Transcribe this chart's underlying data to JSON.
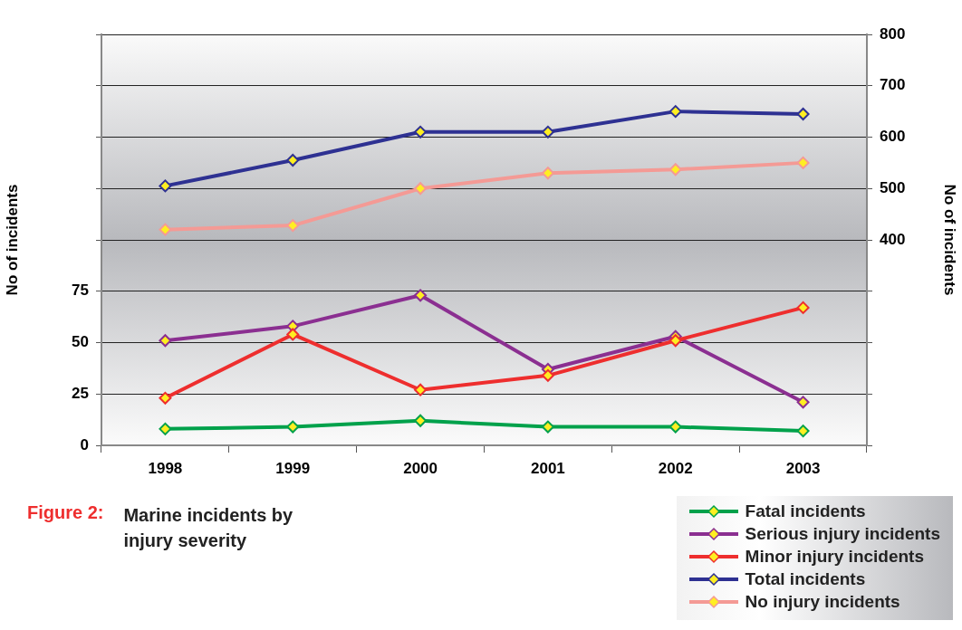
{
  "chart_data": {
    "type": "line",
    "title": "Marine incidents by injury severity",
    "annotations": [
      "Figure 2:"
    ],
    "ylabel": "No of incidents",
    "y2label": "No of incidents",
    "categories": [
      "1998",
      "1999",
      "2000",
      "2001",
      "2002",
      "2003"
    ],
    "series": [
      {
        "name": "Fatal incidents",
        "color": "#00a14b",
        "values": [
          8,
          9,
          12,
          9,
          9,
          7
        ]
      },
      {
        "name": "Serious injury incidents",
        "color": "#8b2f91",
        "values": [
          51,
          58,
          73,
          37,
          53,
          21
        ]
      },
      {
        "name": "Minor injury incidents",
        "color": "#ee2e2e",
        "values": [
          23,
          54,
          27,
          34,
          51,
          67
        ]
      },
      {
        "name": "Total incidents",
        "color": "#2e3192",
        "values": [
          505,
          555,
          610,
          610,
          650,
          645
        ],
        "axis": "y2"
      },
      {
        "name": "No injury incidents",
        "color": "#f49a95",
        "values": [
          420,
          428,
          500,
          530,
          537,
          550
        ],
        "axis": "y2"
      }
    ],
    "ylim": [
      0,
      200
    ],
    "yticks": [
      0,
      25,
      50,
      75,
      {
        "value": 100,
        "label": null
      },
      {
        "value": 125,
        "label": null
      },
      {
        "value": 150,
        "label": null
      },
      {
        "value": 175,
        "label": null
      },
      {
        "value": 200,
        "label": null
      }
    ],
    "y2lim": [
      0,
      800
    ],
    "y2ticks": [
      {
        "value": 0,
        "label": null
      },
      {
        "value": 100,
        "label": null
      },
      {
        "value": 200,
        "label": null
      },
      {
        "value": 300,
        "label": null
      },
      400,
      500,
      600,
      700,
      800
    ],
    "grid": "y",
    "legend": "bottom right",
    "marker": "diamond",
    "line_style": "solid"
  }
}
